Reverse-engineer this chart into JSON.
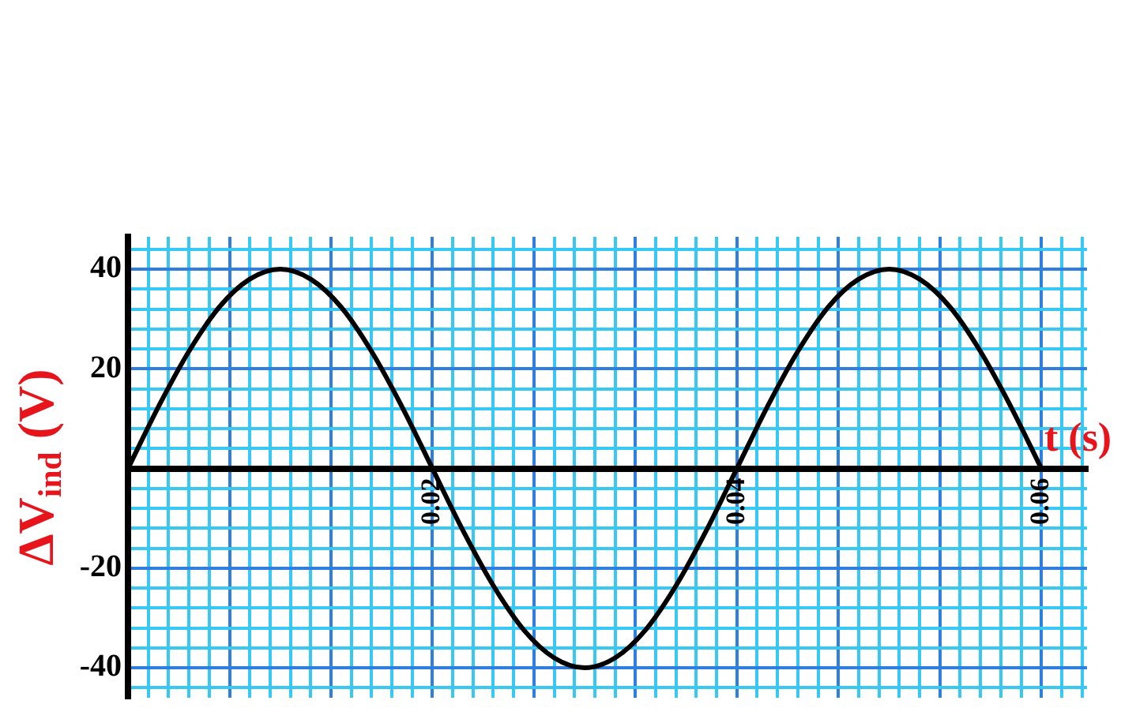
{
  "chart_data": {
    "type": "line",
    "xlabel": "t (s)",
    "ylabel": "ΔV$_{ind}$ (V)",
    "x": [
      0,
      0.002,
      0.004,
      0.006,
      0.008,
      0.01,
      0.012,
      0.014,
      0.016,
      0.018,
      0.02,
      0.022,
      0.024,
      0.026,
      0.028,
      0.03,
      0.032,
      0.034,
      0.036,
      0.038,
      0.04,
      0.042,
      0.044,
      0.046,
      0.048,
      0.05,
      0.052,
      0.054,
      0.056,
      0.058,
      0.06
    ],
    "series": [
      {
        "color": "#000000",
        "values": [
          0,
          12.4,
          23.5,
          32.4,
          38,
          40,
          38,
          32.4,
          23.5,
          12.4,
          0,
          -12.4,
          -23.5,
          -32.4,
          -38,
          -40,
          -38,
          -32.4,
          -23.5,
          -12.4,
          0,
          12.4,
          23.5,
          32.4,
          38,
          40,
          38,
          32.4,
          23.5,
          12.4,
          0
        ]
      }
    ],
    "xlim": [
      0,
      0.063
    ],
    "ylim": [
      -46,
      46.5
    ],
    "xticks": [
      {
        "value": 0,
        "label": null
      },
      {
        "value": 0.00133,
        "label": null
      },
      {
        "value": 0.00267,
        "label": null
      },
      {
        "value": 0.004,
        "label": null
      },
      {
        "value": 0.00533,
        "label": null
      },
      {
        "value": 0.00667,
        "label": null
      },
      {
        "value": 0.008,
        "label": null
      },
      {
        "value": 0.00933,
        "label": null
      },
      {
        "value": 0.01067,
        "label": null
      },
      {
        "value": 0.012,
        "label": null
      },
      {
        "value": 0.01333,
        "label": null
      },
      {
        "value": 0.01467,
        "label": null
      },
      {
        "value": 0.016,
        "label": null
      },
      {
        "value": 0.01733,
        "label": null
      },
      {
        "value": 0.01867,
        "label": null
      },
      0.02,
      {
        "value": 0.02133,
        "label": null
      },
      {
        "value": 0.02267,
        "label": null
      },
      {
        "value": 0.024,
        "label": null
      },
      {
        "value": 0.02533,
        "label": null
      },
      {
        "value": 0.02667,
        "label": null
      },
      {
        "value": 0.028,
        "label": null
      },
      {
        "value": 0.02933,
        "label": null
      },
      {
        "value": 0.03067,
        "label": null
      },
      {
        "value": 0.032,
        "label": null
      },
      {
        "value": 0.03333,
        "label": null
      },
      {
        "value": 0.03467,
        "label": null
      },
      {
        "value": 0.036,
        "label": null
      },
      {
        "value": 0.03733,
        "label": null
      },
      {
        "value": 0.03867,
        "label": null
      },
      0.04,
      {
        "value": 0.04133,
        "label": null
      },
      {
        "value": 0.04267,
        "label": null
      },
      {
        "value": 0.044,
        "label": null
      },
      {
        "value": 0.04533,
        "label": null
      },
      {
        "value": 0.04667,
        "label": null
      },
      {
        "value": 0.048,
        "label": null
      },
      {
        "value": 0.04933,
        "label": null
      },
      {
        "value": 0.05067,
        "label": null
      },
      {
        "value": 0.052,
        "label": null
      },
      {
        "value": 0.05333,
        "label": null
      },
      {
        "value": 0.05467,
        "label": null
      },
      {
        "value": 0.056,
        "label": null
      },
      {
        "value": 0.05733,
        "label": null
      },
      {
        "value": 0.05867,
        "label": null
      },
      0.06,
      {
        "value": 0.06133,
        "label": null
      },
      {
        "value": 0.06267,
        "label": null
      }
    ],
    "yticks": [
      {
        "value": -44,
        "label": null
      },
      -40,
      {
        "value": -36,
        "label": null
      },
      {
        "value": -32,
        "label": null
      },
      {
        "value": -28,
        "label": null
      },
      {
        "value": -24,
        "label": null
      },
      -20,
      {
        "value": -16,
        "label": null
      },
      {
        "value": -12,
        "label": null
      },
      {
        "value": -8,
        "label": null
      },
      {
        "value": -4,
        "label": null
      },
      {
        "value": 0,
        "label": null
      },
      {
        "value": 4,
        "label": null
      },
      {
        "value": 8,
        "label": null
      },
      {
        "value": 12,
        "label": null
      },
      {
        "value": 16,
        "label": null
      },
      20,
      {
        "value": 24,
        "label": null
      },
      {
        "value": 28,
        "label": null
      },
      {
        "value": 32,
        "label": null
      },
      {
        "value": 36,
        "label": null
      },
      40,
      {
        "value": 44,
        "label": null
      }
    ],
    "grid": true,
    "marker": "none",
    "legend": false
  }
}
